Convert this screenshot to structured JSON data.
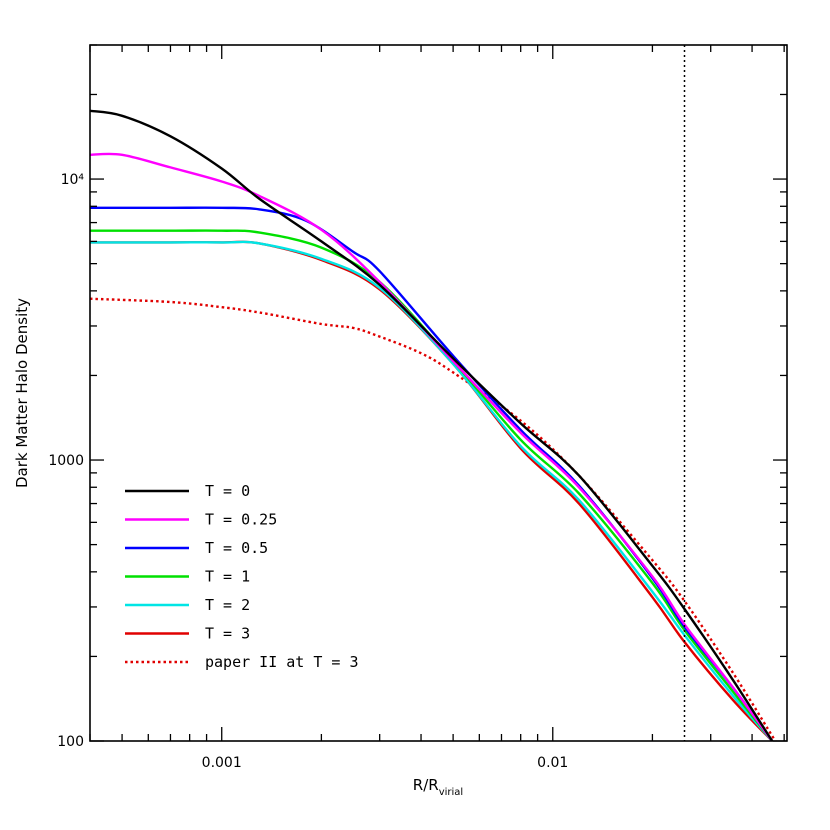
{
  "chart_data": {
    "type": "line",
    "x_scale": "log",
    "y_scale": "log",
    "xlim": [
      0.0004,
      0.051
    ],
    "ylim": [
      100,
      30000
    ],
    "ylabel": "Dark Matter Halo Density",
    "xlabel_main": "R/R",
    "xlabel_sub": "virial",
    "x_ticks": [
      {
        "value": 0.001,
        "label": "0.001"
      },
      {
        "value": 0.01,
        "label": "0.01"
      }
    ],
    "y_ticks": [
      {
        "value": 100,
        "label": "100"
      },
      {
        "value": 1000,
        "label": "1000"
      },
      {
        "value": 10000,
        "label": "10⁴"
      }
    ],
    "reference_line": {
      "x": 0.025,
      "style": "dotted",
      "color": "#000000"
    },
    "legend_position": "bottom-left",
    "series": [
      {
        "name": "T = 0",
        "color": "#000000",
        "dash": "solid",
        "x": [
          0.0004,
          0.0005,
          0.0007,
          0.001,
          0.0013,
          0.002,
          0.003,
          0.005,
          0.008,
          0.012,
          0.02,
          0.025,
          0.035,
          0.046
        ],
        "y": [
          17500,
          16800,
          14200,
          10900,
          8500,
          6000,
          4200,
          2300,
          1350,
          880,
          420,
          295,
          165,
          100
        ]
      },
      {
        "name": "T = 0.25",
        "color": "#ff00ff",
        "dash": "solid",
        "x": [
          0.0004,
          0.0005,
          0.0007,
          0.001,
          0.0013,
          0.002,
          0.003,
          0.005,
          0.008,
          0.012,
          0.02,
          0.025,
          0.035,
          0.046
        ],
        "y": [
          12200,
          12200,
          11000,
          9800,
          8700,
          6600,
          4300,
          2250,
          1250,
          800,
          385,
          260,
          155,
          100
        ]
      },
      {
        "name": "T = 0.5",
        "color": "#0000ff",
        "dash": "solid",
        "x": [
          0.0004,
          0.0005,
          0.0007,
          0.001,
          0.0013,
          0.0018,
          0.0025,
          0.003,
          0.005,
          0.008,
          0.012,
          0.02,
          0.025,
          0.035,
          0.046
        ],
        "y": [
          7900,
          7900,
          7900,
          7900,
          7800,
          7100,
          5500,
          4700,
          2350,
          1280,
          810,
          380,
          255,
          155,
          100
        ]
      },
      {
        "name": "T = 1",
        "color": "#00e000",
        "dash": "solid",
        "x": [
          0.0004,
          0.0007,
          0.001,
          0.0013,
          0.002,
          0.003,
          0.005,
          0.008,
          0.012,
          0.02,
          0.025,
          0.035,
          0.046
        ],
        "y": [
          6550,
          6550,
          6550,
          6450,
          5700,
          4300,
          2250,
          1180,
          760,
          365,
          248,
          150,
          100
        ]
      },
      {
        "name": "T = 2",
        "color": "#00e5e5",
        "dash": "solid",
        "x": [
          0.0004,
          0.0007,
          0.001,
          0.0013,
          0.002,
          0.003,
          0.005,
          0.008,
          0.012,
          0.02,
          0.025,
          0.035,
          0.046
        ],
        "y": [
          5950,
          5950,
          5950,
          5900,
          5200,
          4100,
          2200,
          1120,
          720,
          340,
          238,
          145,
          100
        ]
      },
      {
        "name": "T = 3",
        "color": "#e00000",
        "dash": "solid",
        "x": [
          0.0004,
          0.0007,
          0.001,
          0.0013,
          0.002,
          0.003,
          0.005,
          0.008,
          0.012,
          0.02,
          0.025,
          0.035,
          0.046
        ],
        "y": [
          5950,
          5950,
          5950,
          5900,
          5150,
          4050,
          2200,
          1100,
          700,
          325,
          225,
          140,
          100
        ]
      },
      {
        "name": "paper II at T = 3",
        "color": "#e00000",
        "dash": "dotted",
        "x": [
          0.0004,
          0.0007,
          0.001,
          0.0013,
          0.002,
          0.0025,
          0.003,
          0.004,
          0.005,
          0.008,
          0.012,
          0.02,
          0.025,
          0.035,
          0.047
        ],
        "y": [
          3750,
          3650,
          3500,
          3350,
          3050,
          2950,
          2750,
          2400,
          2050,
          1380,
          880,
          440,
          315,
          175,
          100
        ]
      }
    ]
  }
}
